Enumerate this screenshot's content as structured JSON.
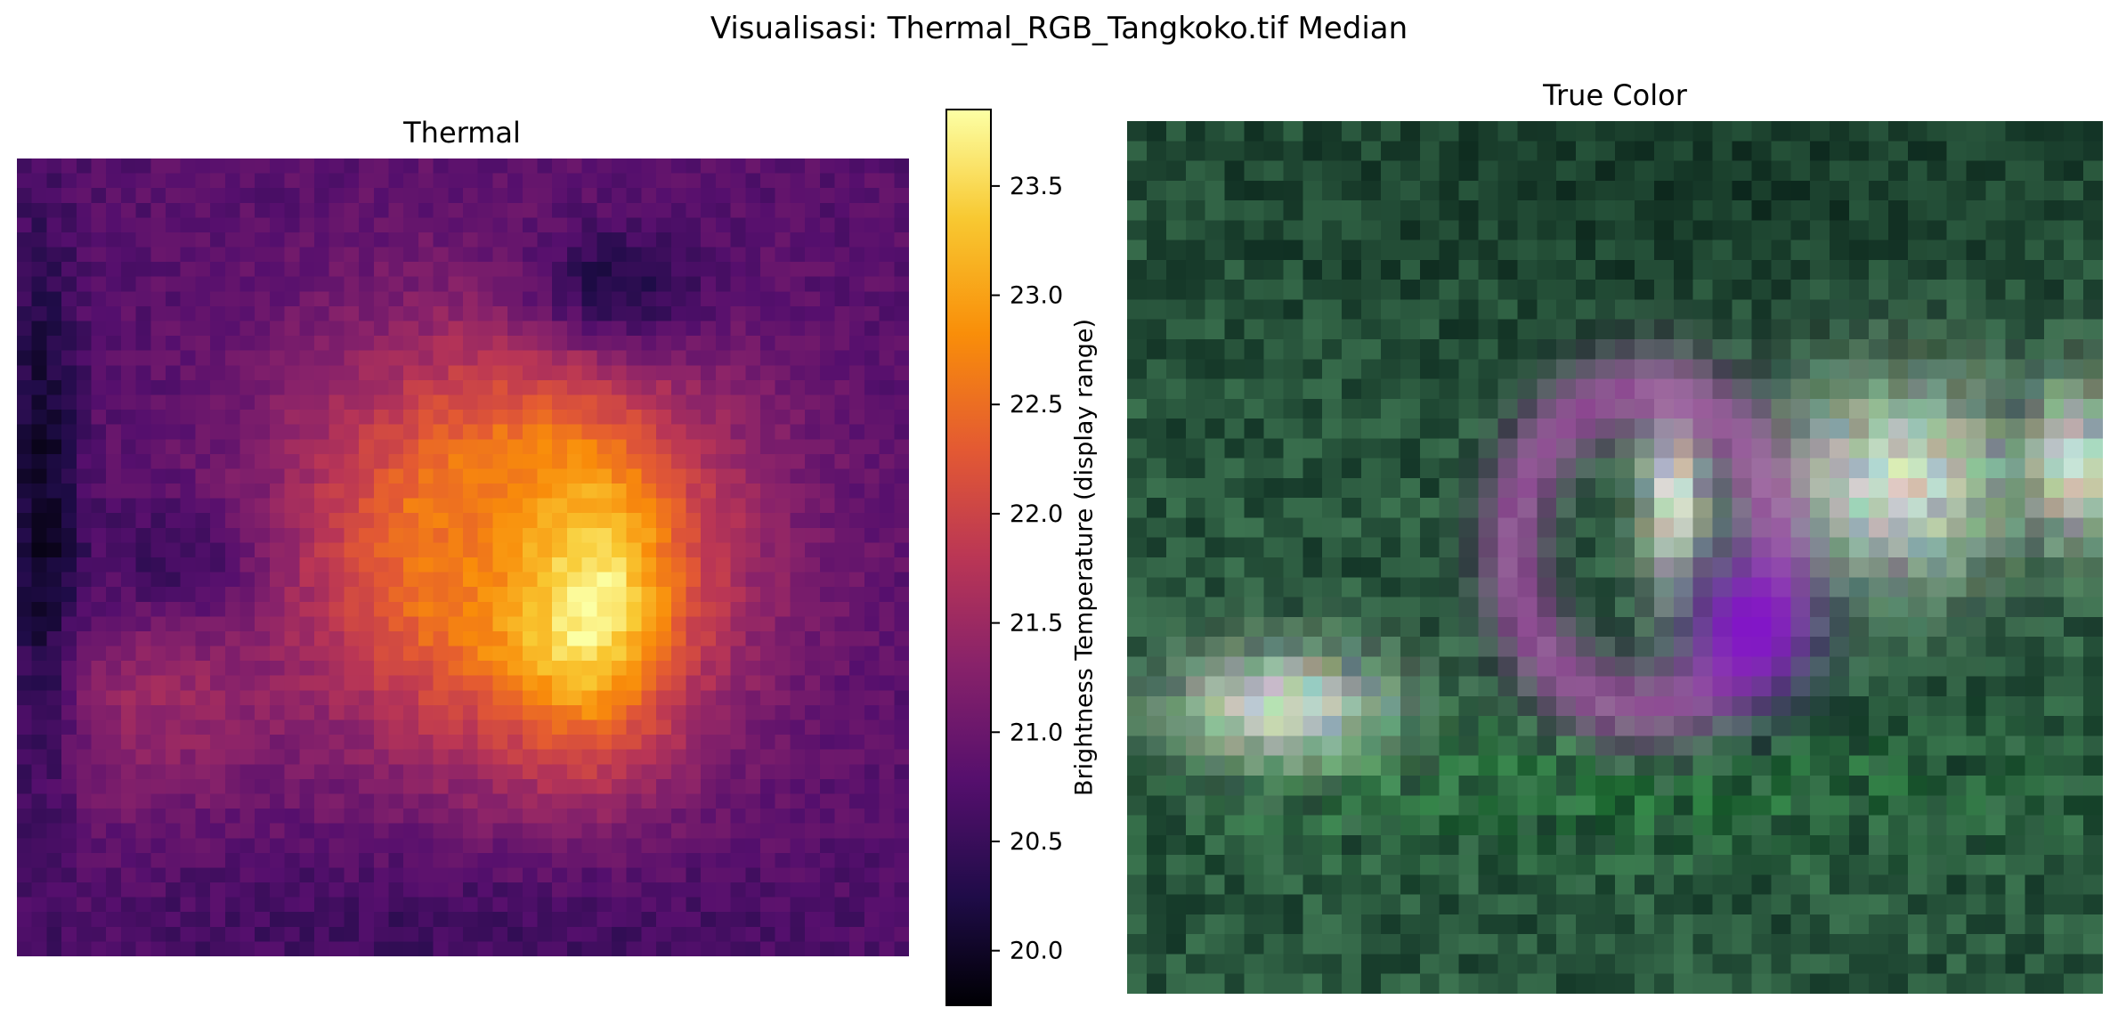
{
  "figure": {
    "suptitle": "Visualisasi: Thermal_RGB_Tangkoko.tif Median"
  },
  "chart_data": [
    {
      "type": "heatmap",
      "title": "Thermal",
      "colormap": "inferno",
      "colorbar": {
        "label": "Brightness Temperature (display range)",
        "vmin": 19.75,
        "vmax": 23.85,
        "ticks": [
          20.0,
          20.5,
          21.0,
          21.5,
          22.0,
          22.5,
          23.0,
          23.5
        ],
        "tick_labels": [
          "20.0",
          "20.5",
          "21.0",
          "21.5",
          "22.0",
          "22.5",
          "23.0",
          "23.5"
        ]
      },
      "grid_size": [
        60,
        54
      ],
      "description_of_values": [
        {
          "region": "hotspot core (center)",
          "value": 23.8
        },
        {
          "region": "warm ring around hotspot",
          "value": 22.6
        },
        {
          "region": "lower left warm lobe",
          "value": 21.4
        },
        {
          "region": "background",
          "value": 20.8
        },
        {
          "region": "cool patches (top, left edge)",
          "value": 19.9
        }
      ]
    },
    {
      "type": "heatmap",
      "title": "True Color",
      "rendering": "rgb",
      "grid_size": [
        50,
        44
      ]
    }
  ]
}
